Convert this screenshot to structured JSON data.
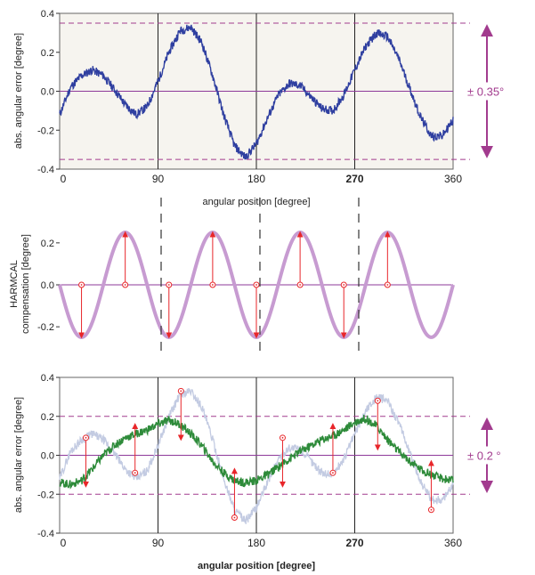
{
  "chart_data": [
    {
      "type": "line",
      "panel": "top",
      "xlabel": "angular position [degree]",
      "ylabel": "abs. angular error [degree]",
      "xlim": [
        0,
        360
      ],
      "ylim": [
        -0.4,
        0.4
      ],
      "xticks": [
        "0",
        "90",
        "180",
        "270",
        "360"
      ],
      "yticks": [
        "0.4",
        "0.2",
        "0.0",
        "-0.2",
        "-0.4"
      ],
      "bold_xtick": "270",
      "band": [
        -0.35,
        0.35
      ],
      "band_label": "± 0.35°",
      "series": [
        {
          "color": "#2f3fa0",
          "x": [
            0,
            10,
            20,
            30,
            40,
            50,
            60,
            70,
            80,
            90,
            100,
            110,
            120,
            130,
            140,
            150,
            160,
            170,
            180,
            190,
            200,
            210,
            220,
            230,
            240,
            250,
            260,
            270,
            280,
            290,
            300,
            310,
            320,
            330,
            340,
            350,
            360
          ],
          "y": [
            -0.12,
            0.02,
            0.08,
            0.11,
            0.08,
            0.01,
            -0.07,
            -0.12,
            -0.08,
            0.05,
            0.2,
            0.31,
            0.33,
            0.25,
            0.08,
            -0.12,
            -0.28,
            -0.34,
            -0.27,
            -0.14,
            -0.02,
            0.04,
            0.03,
            -0.03,
            -0.09,
            -0.1,
            -0.02,
            0.11,
            0.23,
            0.3,
            0.28,
            0.17,
            0.02,
            -0.13,
            -0.23,
            -0.23,
            -0.15
          ]
        }
      ]
    },
    {
      "type": "line",
      "panel": "middle",
      "ylabel": "HARMCAL compensation [degree]",
      "xlim": [
        0,
        360
      ],
      "ylim": [
        -0.28,
        0.28
      ],
      "yticks": [
        "0.2",
        "0.0",
        "-0.2"
      ],
      "series": [
        {
          "color": "#c79bd1",
          "amplitude": 0.25,
          "period": 80,
          "phase_deg": 0
        }
      ],
      "arrows": [
        {
          "x": 20,
          "y_from": 0,
          "y_to": -0.25
        },
        {
          "x": 60,
          "y_from": 0,
          "y_to": 0.25
        },
        {
          "x": 100,
          "y_from": 0,
          "y_to": -0.25
        },
        {
          "x": 140,
          "y_from": 0,
          "y_to": 0.25
        },
        {
          "x": 180,
          "y_from": 0,
          "y_to": -0.25
        },
        {
          "x": 220,
          "y_from": 0,
          "y_to": 0.25
        },
        {
          "x": 260,
          "y_from": 0,
          "y_to": -0.25
        },
        {
          "x": 300,
          "y_from": 0,
          "y_to": 0.25
        }
      ]
    },
    {
      "type": "line",
      "panel": "bottom",
      "xlabel": "angular position [degree]",
      "ylabel": "abs. angular error [degree]",
      "xlim": [
        0,
        360
      ],
      "ylim": [
        -0.4,
        0.4
      ],
      "xticks": [
        "0",
        "90",
        "180",
        "270",
        "360"
      ],
      "yticks": [
        "0.4",
        "0.2",
        "0.0",
        "-0.2",
        "-0.4"
      ],
      "bold_xtick": "270",
      "band": [
        -0.2,
        0.2
      ],
      "band_label": "± 0.2 °",
      "series": [
        {
          "color": "#c3cbe2",
          "x": [
            0,
            10,
            20,
            30,
            40,
            50,
            60,
            70,
            80,
            90,
            100,
            110,
            120,
            130,
            140,
            150,
            160,
            170,
            180,
            190,
            200,
            210,
            220,
            230,
            240,
            250,
            260,
            270,
            280,
            290,
            300,
            310,
            320,
            330,
            340,
            350,
            360
          ],
          "y": [
            -0.12,
            0.02,
            0.08,
            0.11,
            0.08,
            0.01,
            -0.07,
            -0.12,
            -0.08,
            0.05,
            0.2,
            0.31,
            0.33,
            0.25,
            0.08,
            -0.12,
            -0.28,
            -0.34,
            -0.27,
            -0.14,
            -0.02,
            0.04,
            0.03,
            -0.03,
            -0.09,
            -0.1,
            -0.02,
            0.11,
            0.23,
            0.3,
            0.28,
            0.17,
            0.02,
            -0.13,
            -0.23,
            -0.23,
            -0.15
          ]
        },
        {
          "color": "#2e8b3a",
          "x": [
            0,
            10,
            20,
            30,
            40,
            50,
            60,
            70,
            80,
            90,
            100,
            110,
            120,
            130,
            140,
            150,
            160,
            170,
            180,
            190,
            200,
            210,
            220,
            230,
            240,
            250,
            260,
            270,
            280,
            290,
            300,
            310,
            320,
            330,
            340,
            350,
            360
          ],
          "y": [
            -0.14,
            -0.15,
            -0.13,
            -0.07,
            0.0,
            0.05,
            0.09,
            0.11,
            0.13,
            0.16,
            0.18,
            0.16,
            0.11,
            0.05,
            -0.03,
            -0.09,
            -0.13,
            -0.14,
            -0.13,
            -0.1,
            -0.06,
            -0.02,
            0.02,
            0.05,
            0.08,
            0.1,
            0.13,
            0.17,
            0.19,
            0.15,
            0.08,
            0.02,
            -0.03,
            -0.07,
            -0.1,
            -0.12,
            -0.13
          ]
        }
      ],
      "arrows": [
        {
          "x": 24,
          "y_from": 0.09,
          "y_to": -0.16
        },
        {
          "x": 69,
          "y_from": -0.09,
          "y_to": 0.16
        },
        {
          "x": 111,
          "y_from": 0.33,
          "y_to": 0.08
        },
        {
          "x": 160,
          "y_from": -0.32,
          "y_to": -0.07
        },
        {
          "x": 204,
          "y_from": 0.09,
          "y_to": -0.16
        },
        {
          "x": 250,
          "y_from": -0.09,
          "y_to": 0.16
        },
        {
          "x": 291,
          "y_from": 0.28,
          "y_to": 0.03
        },
        {
          "x": 340,
          "y_from": -0.28,
          "y_to": -0.03
        }
      ]
    }
  ]
}
